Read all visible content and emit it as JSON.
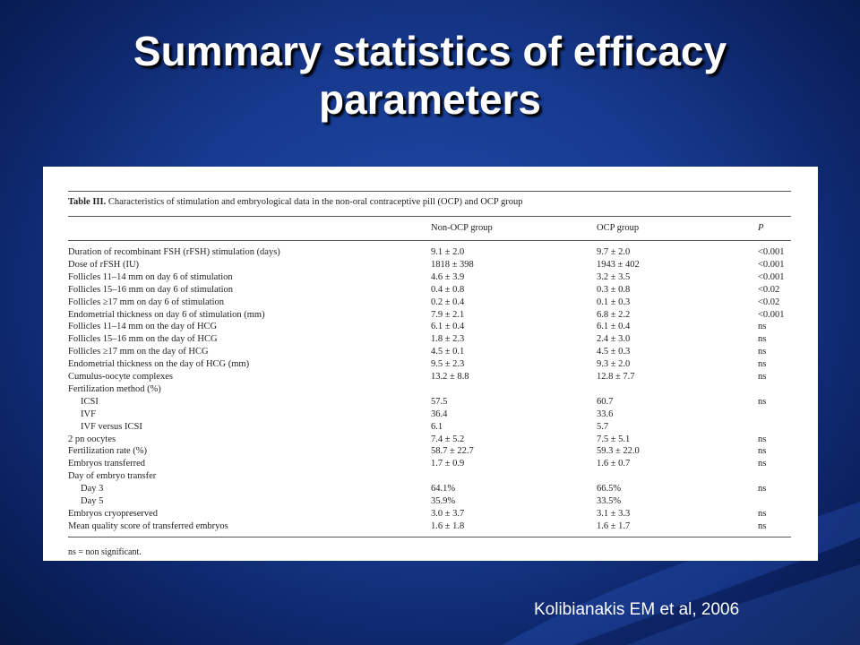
{
  "slide": {
    "title_line1": "Summary statistics of efficacy",
    "title_line2": "parameters",
    "citation": "Kolibianakis EM et al, 2006"
  },
  "table": {
    "caption_label": "Table III.",
    "caption_text": "Characteristics of stimulation and embryological data in the non-oral contraceptive pill (OCP) and OCP group",
    "headers": [
      "",
      "Non-OCP group",
      "OCP group",
      "P"
    ],
    "rows": [
      [
        "Duration of recombinant FSH (rFSH) stimulation (days)",
        "9.1 ± 2.0",
        "9.7 ± 2.0",
        "<0.001"
      ],
      [
        "Dose of rFSH (IU)",
        "1818 ± 398",
        "1943 ± 402",
        "<0.001"
      ],
      [
        "Follicles 11–14 mm on day 6 of stimulation",
        "4.6 ± 3.9",
        "3.2 ± 3.5",
        "<0.001"
      ],
      [
        "Follicles 15–16 mm on day 6 of stimulation",
        "0.4 ± 0.8",
        "0.3 ± 0.8",
        "<0.02"
      ],
      [
        "Follicles ≥17 mm on day 6 of stimulation",
        "0.2 ± 0.4",
        "0.1 ± 0.3",
        "<0.02"
      ],
      [
        "Endometrial thickness on day 6 of stimulation (mm)",
        "7.9 ± 2.1",
        "6.8 ± 2.2",
        "<0.001"
      ],
      [
        "Follicles 11–14 mm on the day of HCG",
        "6.1 ± 0.4",
        "6.1 ± 0.4",
        "ns"
      ],
      [
        "Follicles 15–16 mm on the day of HCG",
        "1.8 ± 2.3",
        "2.4 ± 3.0",
        "ns"
      ],
      [
        "Follicles ≥17 mm on the day of HCG",
        "4.5 ± 0.1",
        "4.5 ± 0.3",
        "ns"
      ],
      [
        "Endometrial thickness on the day of HCG (mm)",
        "9.5 ± 2.3",
        "9.3 ± 2.0",
        "ns"
      ],
      [
        "Cumulus-oocyte complexes",
        "13.2 ± 8.8",
        "12.8 ± 7.7",
        "ns"
      ],
      [
        "Fertilization method (%)",
        "",
        "",
        ""
      ],
      [
        "   ICSI",
        "57.5",
        "60.7",
        "ns"
      ],
      [
        "   IVF",
        "36.4",
        "33.6",
        ""
      ],
      [
        "   IVF versus ICSI",
        "6.1",
        "5.7",
        ""
      ],
      [
        "2 pn oocytes",
        "7.4 ± 5.2",
        "7.5 ± 5.1",
        "ns"
      ],
      [
        "Fertilization rate (%)",
        "58.7 ± 22.7",
        "59.3 ± 22.0",
        "ns"
      ],
      [
        "Embryos transferred",
        "1.7 ± 0.9",
        "1.6 ± 0.7",
        "ns"
      ],
      [
        "Day of embryo transfer",
        "",
        "",
        ""
      ],
      [
        "   Day 3",
        "64.1%",
        "66.5%",
        "ns"
      ],
      [
        "   Day 5",
        "35.9%",
        "33.5%",
        ""
      ],
      [
        "Embryos cryopreserved",
        "3.0 ± 3.7",
        "3.1 ± 3.3",
        "ns"
      ],
      [
        "Mean quality score of transferred embryos",
        "1.6 ± 1.8",
        "1.6 ± 1.7",
        "ns"
      ]
    ],
    "footnote": "ns = non significant."
  }
}
